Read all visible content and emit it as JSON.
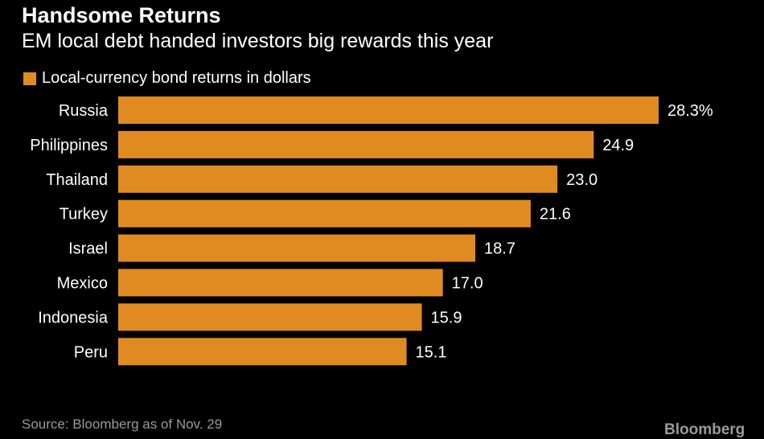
{
  "header": {
    "title": "Handsome Returns",
    "subtitle": "EM local debt handed investors big rewards this year"
  },
  "footer": {
    "source": "Source: Bloomberg as of Nov. 29",
    "brand": "Bloomberg"
  },
  "colors": {
    "bar": "#E08B22",
    "background": "#000000",
    "text": "#FFFFFF"
  },
  "chart_data": {
    "type": "bar",
    "orientation": "horizontal",
    "title": "Handsome Returns",
    "subtitle": "EM local debt handed investors big rewards this year",
    "legend_position": "top-left",
    "categories": [
      "Russia",
      "Philippines",
      "Thailand",
      "Turkey",
      "Israel",
      "Mexico",
      "Indonesia",
      "Peru"
    ],
    "series": [
      {
        "name": "Local-currency bond returns in dollars",
        "values": [
          28.3,
          24.9,
          23.0,
          21.6,
          18.7,
          17.0,
          15.9,
          15.1
        ],
        "labels": [
          "28.3%",
          "24.9",
          "23.0",
          "21.6",
          "18.7",
          "17.0",
          "15.9",
          "15.1"
        ]
      }
    ],
    "xlim": [
      0,
      28.3
    ],
    "grid": false
  }
}
